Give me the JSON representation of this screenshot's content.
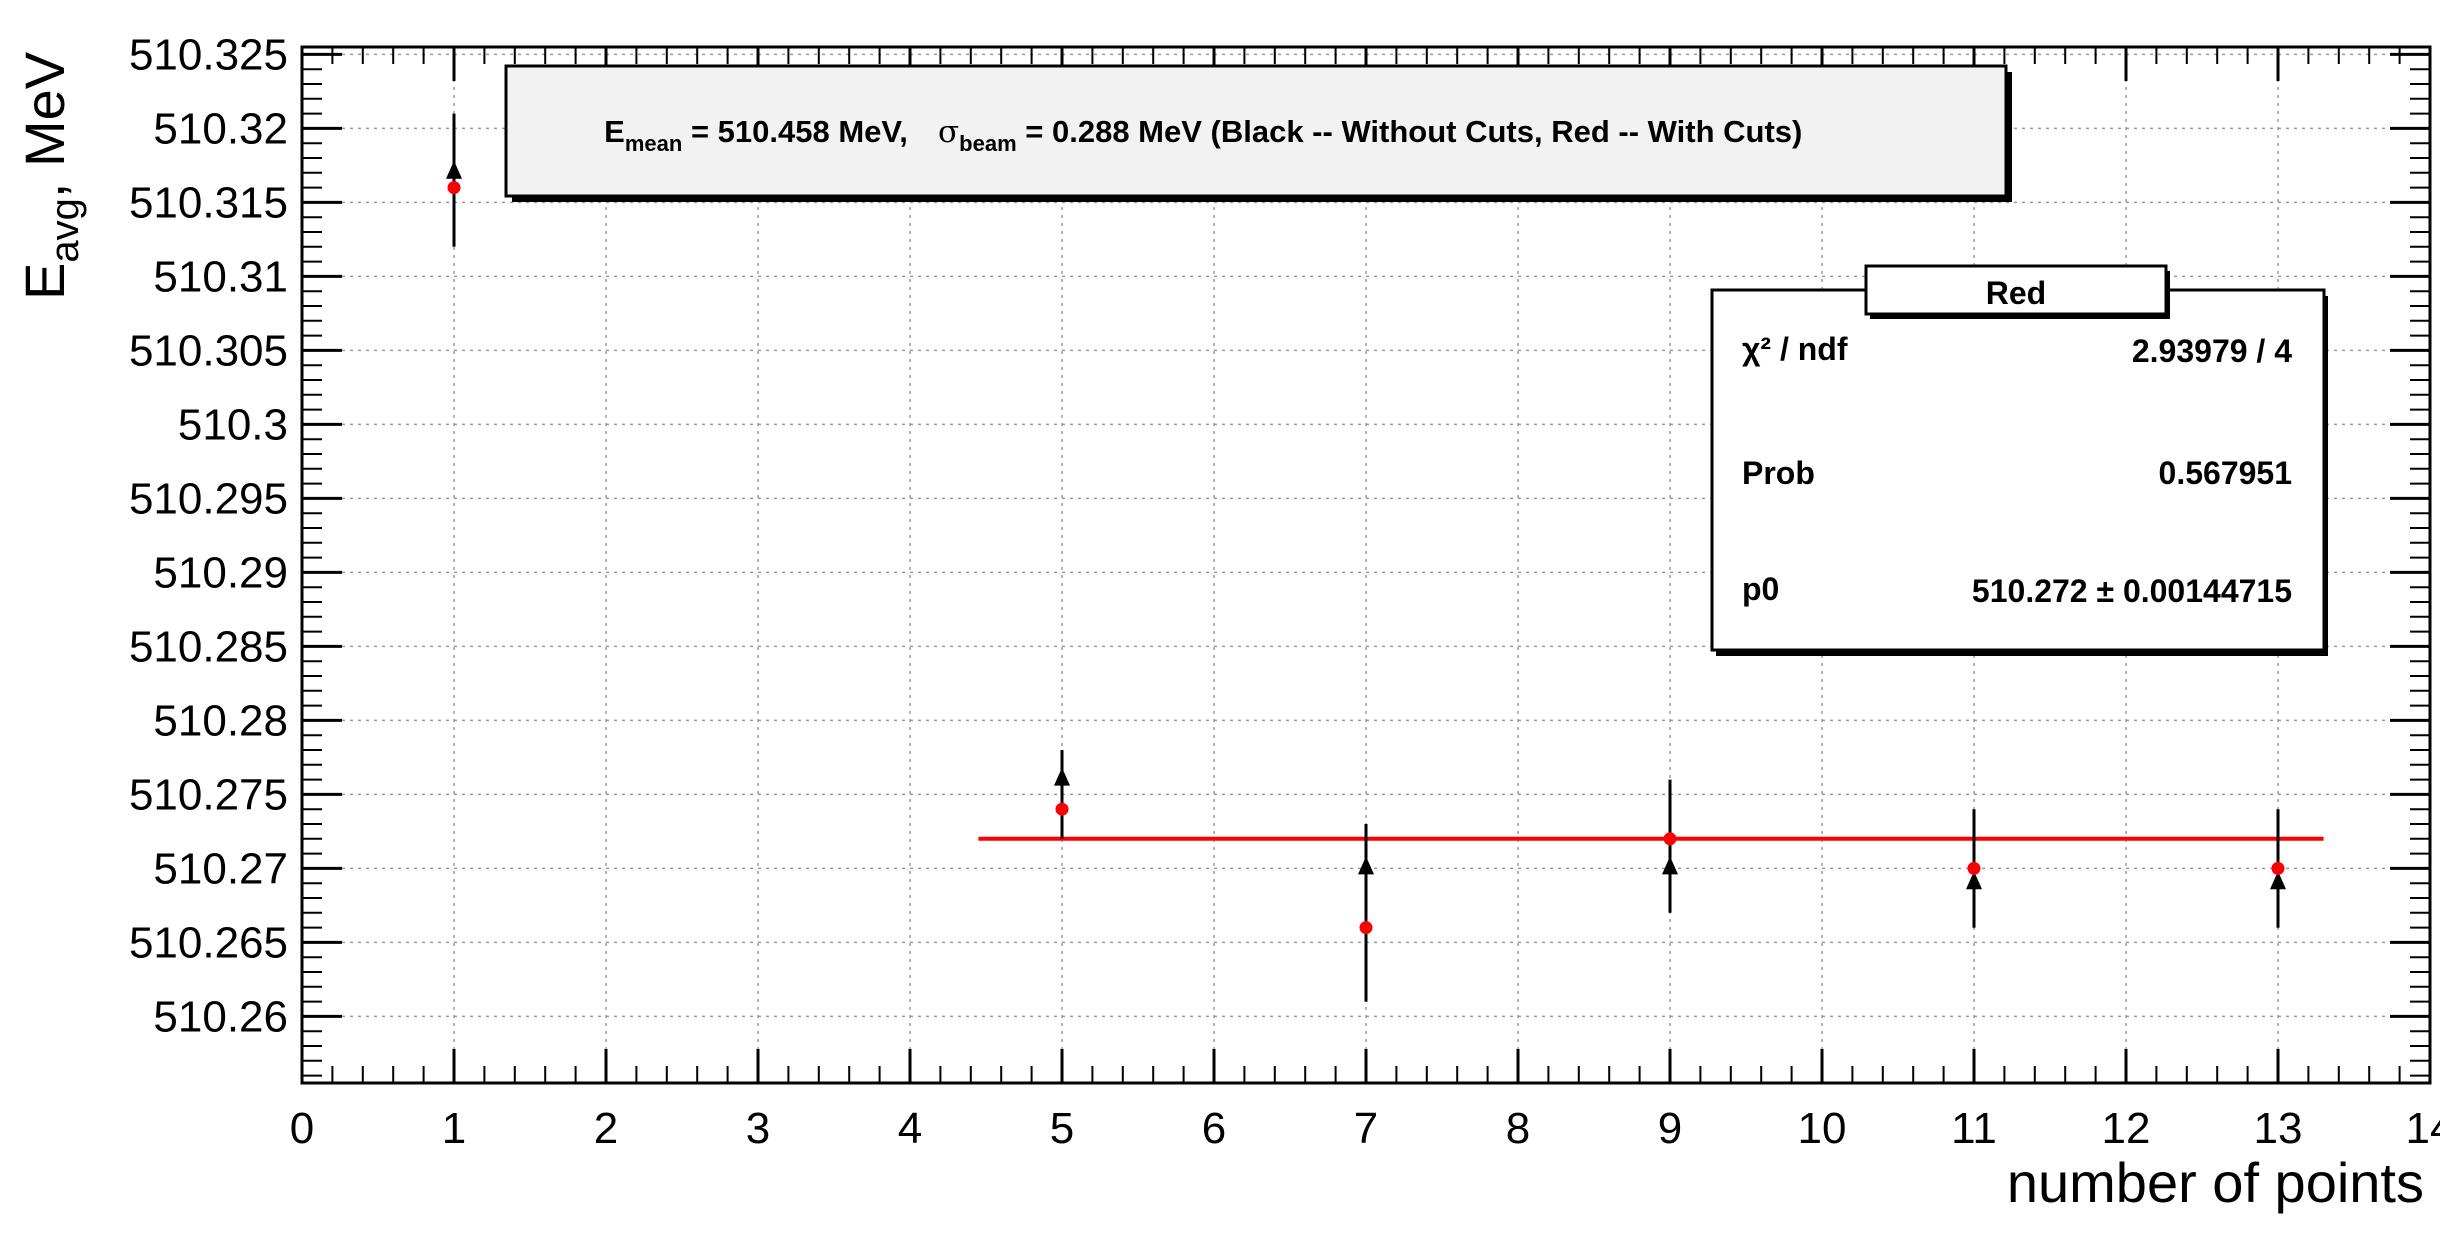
{
  "chart_data": {
    "type": "scatter",
    "title": "",
    "title_parts": {
      "e": "E",
      "e_sub": "mean",
      "e_val": " = 510.458 MeV, ",
      "sigma": "σ",
      "sigma_sub": "beam",
      "rest": " = 0.288 MeV (Black -- Without Cuts, Red -- With Cuts)"
    },
    "xlabel": "number of points",
    "ylabel_parts": {
      "main": "E",
      "sub": "avg",
      "rest": ", MeV"
    },
    "xlim": [
      0,
      14
    ],
    "ylim": [
      510.2555,
      510.3255
    ],
    "x_ticks": [
      0,
      1,
      2,
      3,
      4,
      5,
      6,
      7,
      8,
      9,
      10,
      11,
      12,
      13,
      14
    ],
    "x_tick_labels": [
      "0",
      "1",
      "2",
      "3",
      "4",
      "5",
      "6",
      "7",
      "8",
      "9",
      "10",
      "11",
      "12",
      "13",
      "14"
    ],
    "y_ticks": [
      510.26,
      510.265,
      510.27,
      510.275,
      510.28,
      510.285,
      510.29,
      510.295,
      510.3,
      510.305,
      510.31,
      510.315,
      510.32,
      510.325
    ],
    "y_tick_labels": [
      "510.26",
      "510.265",
      "510.27",
      "510.275",
      "510.28",
      "510.285",
      "510.29",
      "510.295",
      "510.3",
      "510.305",
      "510.31",
      "510.315",
      "510.32",
      "510.325"
    ],
    "grid": true,
    "series": [
      {
        "color": "#000000",
        "marker": "triangle",
        "x": [
          1,
          5,
          7,
          9,
          11,
          13
        ],
        "y": [
          510.317,
          510.276,
          510.27,
          510.27,
          510.269,
          510.269
        ],
        "err": [
          0.004,
          0.002,
          0.003,
          0.003,
          0.003,
          0.003
        ]
      },
      {
        "color": "#ff0000",
        "marker": "circle",
        "x": [
          1,
          5,
          7,
          9,
          11,
          13
        ],
        "y": [
          510.316,
          510.274,
          510.266,
          510.272,
          510.27,
          510.27
        ],
        "err": [
          0.004,
          0.002,
          0.005,
          0.004,
          0.004,
          0.004
        ]
      }
    ],
    "fit": {
      "color": "#ff0000",
      "x": [
        4.45,
        13.3
      ],
      "y": 510.272
    },
    "stats": {
      "title": "Red",
      "rows": [
        {
          "label": "χ² / ndf",
          "value": "2.93979 / 4"
        },
        {
          "label": "Prob",
          "value": "0.567951"
        },
        {
          "label": "p0",
          "value": "510.272 ± 0.00144715"
        }
      ]
    }
  }
}
